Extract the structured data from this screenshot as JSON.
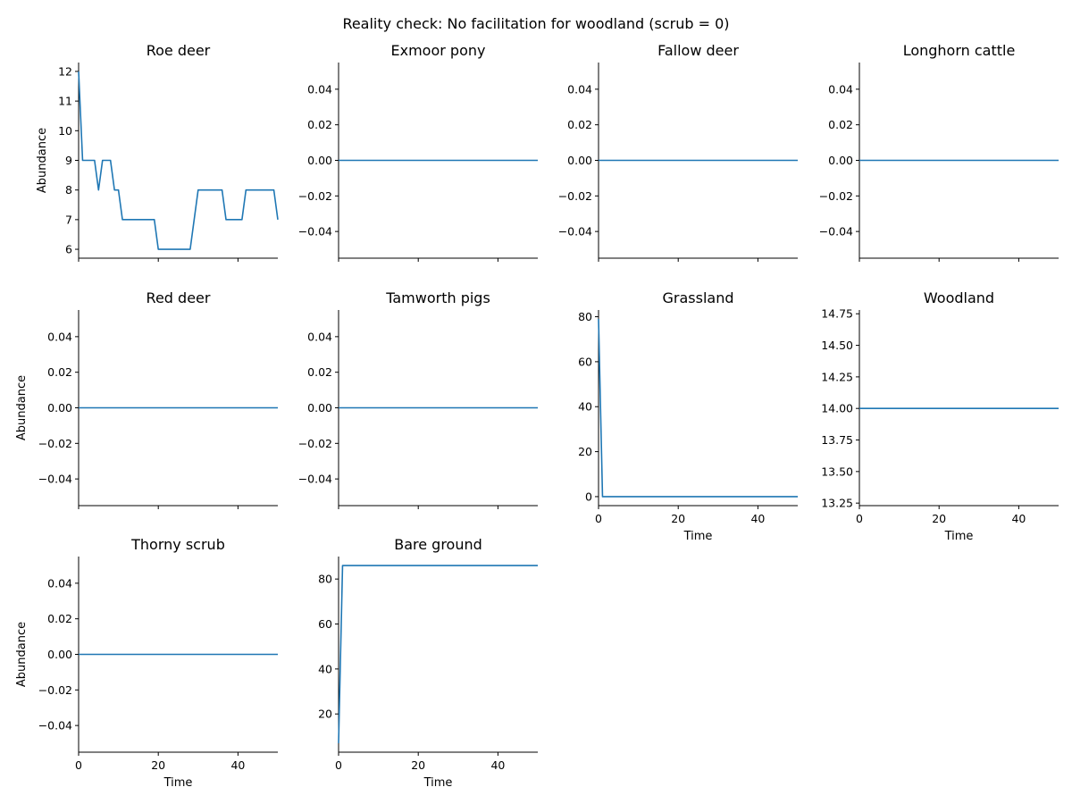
{
  "figure_title": "Reality check: No facilitation for woodland (scrub = 0)",
  "chart_data": [
    {
      "type": "line",
      "title": "Roe deer",
      "xlabel": "",
      "ylabel": "Abundance",
      "xlim": [
        0,
        50
      ],
      "ylim": [
        5.7,
        12.3
      ],
      "xticks": [
        0,
        20,
        40
      ],
      "show_xticklabels": false,
      "yticks": [
        6,
        7,
        8,
        9,
        10,
        11,
        12
      ],
      "yticklabels": [
        "6",
        "7",
        "8",
        "9",
        "10",
        "11",
        "12"
      ],
      "color": "#1f77b4",
      "x": [
        0,
        1,
        2,
        3,
        4,
        5,
        6,
        7,
        8,
        9,
        10,
        11,
        12,
        13,
        14,
        15,
        16,
        17,
        18,
        19,
        20,
        21,
        22,
        23,
        24,
        25,
        26,
        27,
        28,
        29,
        30,
        31,
        32,
        33,
        34,
        35,
        36,
        37,
        38,
        39,
        40,
        41,
        42,
        43,
        44,
        45,
        46,
        47,
        48,
        49,
        50
      ],
      "y": [
        12,
        9,
        9,
        9,
        9,
        8,
        9,
        9,
        9,
        8,
        8,
        7,
        7,
        7,
        7,
        7,
        7,
        7,
        7,
        7,
        6,
        6,
        6,
        6,
        6,
        6,
        6,
        6,
        6,
        7,
        8,
        8,
        8,
        8,
        8,
        8,
        8,
        7,
        7,
        7,
        7,
        7,
        8,
        8,
        8,
        8,
        8,
        8,
        8,
        8,
        7
      ]
    },
    {
      "type": "line",
      "title": "Exmoor pony",
      "xlabel": "",
      "ylabel": "",
      "xlim": [
        0,
        50
      ],
      "ylim": [
        -0.055,
        0.055
      ],
      "xticks": [
        0,
        20,
        40
      ],
      "show_xticklabels": false,
      "yticks": [
        -0.04,
        -0.02,
        0,
        0.02,
        0.04
      ],
      "yticklabels": [
        "−0.04",
        "−0.02",
        "0.00",
        "0.02",
        "0.04"
      ],
      "color": "#1f77b4",
      "x": [
        0,
        50
      ],
      "y": [
        0,
        0
      ]
    },
    {
      "type": "line",
      "title": "Fallow deer",
      "xlabel": "",
      "ylabel": "",
      "xlim": [
        0,
        50
      ],
      "ylim": [
        -0.055,
        0.055
      ],
      "xticks": [
        0,
        20,
        40
      ],
      "show_xticklabels": false,
      "yticks": [
        -0.04,
        -0.02,
        0,
        0.02,
        0.04
      ],
      "yticklabels": [
        "−0.04",
        "−0.02",
        "0.00",
        "0.02",
        "0.04"
      ],
      "color": "#1f77b4",
      "x": [
        0,
        50
      ],
      "y": [
        0,
        0
      ]
    },
    {
      "type": "line",
      "title": "Longhorn cattle",
      "xlabel": "",
      "ylabel": "",
      "xlim": [
        0,
        50
      ],
      "ylim": [
        -0.055,
        0.055
      ],
      "xticks": [
        0,
        20,
        40
      ],
      "show_xticklabels": false,
      "yticks": [
        -0.04,
        -0.02,
        0,
        0.02,
        0.04
      ],
      "yticklabels": [
        "−0.04",
        "−0.02",
        "0.00",
        "0.02",
        "0.04"
      ],
      "color": "#1f77b4",
      "x": [
        0,
        50
      ],
      "y": [
        0,
        0
      ]
    },
    {
      "type": "line",
      "title": "Red deer",
      "xlabel": "",
      "ylabel": "Abundance",
      "xlim": [
        0,
        50
      ],
      "ylim": [
        -0.055,
        0.055
      ],
      "xticks": [
        0,
        20,
        40
      ],
      "show_xticklabels": false,
      "yticks": [
        -0.04,
        -0.02,
        0,
        0.02,
        0.04
      ],
      "yticklabels": [
        "−0.04",
        "−0.02",
        "0.00",
        "0.02",
        "0.04"
      ],
      "color": "#1f77b4",
      "x": [
        0,
        50
      ],
      "y": [
        0,
        0
      ]
    },
    {
      "type": "line",
      "title": "Tamworth pigs",
      "xlabel": "",
      "ylabel": "",
      "xlim": [
        0,
        50
      ],
      "ylim": [
        -0.055,
        0.055
      ],
      "xticks": [
        0,
        20,
        40
      ],
      "show_xticklabels": false,
      "yticks": [
        -0.04,
        -0.02,
        0,
        0.02,
        0.04
      ],
      "yticklabels": [
        "−0.04",
        "−0.02",
        "0.00",
        "0.02",
        "0.04"
      ],
      "color": "#1f77b4",
      "x": [
        0,
        50
      ],
      "y": [
        0,
        0
      ]
    },
    {
      "type": "line",
      "title": "Grassland",
      "xlabel": "Time",
      "ylabel": "",
      "xlim": [
        0,
        50
      ],
      "ylim": [
        -4,
        83
      ],
      "xticks": [
        0,
        20,
        40
      ],
      "show_xticklabels": true,
      "xticklabels": [
        "0",
        "20",
        "40"
      ],
      "yticks": [
        0,
        20,
        40,
        60,
        80
      ],
      "yticklabels": [
        "0",
        "20",
        "40",
        "60",
        "80"
      ],
      "color": "#1f77b4",
      "x": [
        0,
        1,
        50
      ],
      "y": [
        79,
        0,
        0
      ]
    },
    {
      "type": "line",
      "title": "Woodland",
      "xlabel": "Time",
      "ylabel": "",
      "xlim": [
        0,
        50
      ],
      "ylim": [
        13.23,
        14.78
      ],
      "xticks": [
        0,
        20,
        40
      ],
      "show_xticklabels": true,
      "xticklabels": [
        "0",
        "20",
        "40"
      ],
      "yticks": [
        13.25,
        13.5,
        13.75,
        14,
        14.25,
        14.5,
        14.75
      ],
      "yticklabels": [
        "13.25",
        "13.50",
        "13.75",
        "14.00",
        "14.25",
        "14.50",
        "14.75"
      ],
      "color": "#1f77b4",
      "x": [
        0,
        50
      ],
      "y": [
        14,
        14
      ]
    },
    {
      "type": "line",
      "title": "Thorny scrub",
      "xlabel": "Time",
      "ylabel": "Abundance",
      "xlim": [
        0,
        50
      ],
      "ylim": [
        -0.055,
        0.055
      ],
      "xticks": [
        0,
        20,
        40
      ],
      "show_xticklabels": true,
      "xticklabels": [
        "0",
        "20",
        "40"
      ],
      "yticks": [
        -0.04,
        -0.02,
        0,
        0.02,
        0.04
      ],
      "yticklabels": [
        "−0.04",
        "−0.02",
        "0.00",
        "0.02",
        "0.04"
      ],
      "color": "#1f77b4",
      "x": [
        0,
        50
      ],
      "y": [
        0,
        0
      ]
    },
    {
      "type": "line",
      "title": "Bare ground",
      "xlabel": "Time",
      "ylabel": "",
      "xlim": [
        0,
        50
      ],
      "ylim": [
        3,
        90
      ],
      "xticks": [
        0,
        20,
        40
      ],
      "show_xticklabels": true,
      "xticklabels": [
        "0",
        "20",
        "40"
      ],
      "yticks": [
        20,
        40,
        60,
        80
      ],
      "yticklabels": [
        "20",
        "40",
        "60",
        "80"
      ],
      "color": "#1f77b4",
      "x": [
        0,
        1,
        50
      ],
      "y": [
        7,
        86,
        86
      ]
    }
  ]
}
